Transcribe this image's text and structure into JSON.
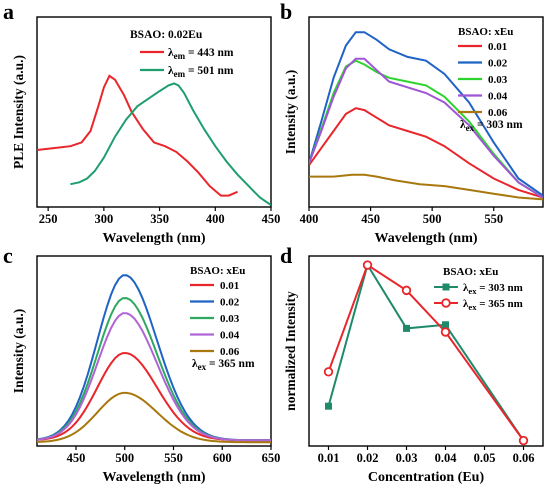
{
  "chart_data": [
    {
      "panel": "a",
      "type": "line",
      "xlabel": "Wavelength (nm)",
      "ylabel": "PLE Intensity (a.u.)",
      "xlim": [
        240,
        450
      ],
      "ylim": [
        0,
        1.0
      ],
      "xticks": [
        250,
        300,
        350,
        400,
        450
      ],
      "show_y_ticks": false,
      "annotation": "BSAO: 0.02Eu",
      "legend_position": "top-right",
      "series": [
        {
          "name": "λem = 443 nm",
          "legend_main": "λ",
          "legend_sub": "em",
          "legend_rest": " = 443 nm",
          "color": "#e8262b",
          "x": [
            240,
            255,
            270,
            280,
            288,
            295,
            300,
            305,
            310,
            318,
            325,
            335,
            345,
            355,
            365,
            375,
            385,
            395,
            405,
            412,
            420
          ],
          "y": [
            0.3,
            0.31,
            0.32,
            0.34,
            0.4,
            0.53,
            0.63,
            0.69,
            0.67,
            0.59,
            0.5,
            0.41,
            0.34,
            0.32,
            0.29,
            0.24,
            0.18,
            0.11,
            0.06,
            0.06,
            0.08
          ]
        },
        {
          "name": "λem = 501 nm",
          "legend_main": "λ",
          "legend_sub": "em",
          "legend_rest": " = 501 nm",
          "color": "#1f9e6e",
          "x": [
            270,
            278,
            285,
            292,
            300,
            310,
            320,
            330,
            340,
            350,
            358,
            363,
            367,
            372,
            380,
            390,
            400,
            410,
            420,
            430,
            440,
            450
          ],
          "y": [
            0.12,
            0.13,
            0.15,
            0.19,
            0.26,
            0.37,
            0.46,
            0.53,
            0.57,
            0.61,
            0.64,
            0.65,
            0.64,
            0.6,
            0.51,
            0.41,
            0.32,
            0.24,
            0.17,
            0.11,
            0.05,
            0.01
          ]
        }
      ]
    },
    {
      "panel": "b",
      "type": "line",
      "xlabel": "Wavelength (nm)",
      "ylabel": "Intensity (a.u.)",
      "xlim": [
        400,
        590
      ],
      "ylim": [
        0,
        1.0
      ],
      "xticks": [
        400,
        450,
        500,
        550
      ],
      "show_y_ticks": false,
      "legend_title": "BSAO: xEu",
      "annotation_main": "λ",
      "annotation_sub": "ex",
      "annotation_rest": " = 303 nm",
      "legend_position": "top-right",
      "series": [
        {
          "name": "0.01",
          "color": "#e8262b",
          "x": [
            400,
            410,
            420,
            430,
            438,
            445,
            455,
            465,
            480,
            495,
            510,
            530,
            550,
            570,
            590
          ],
          "y": [
            0.22,
            0.31,
            0.4,
            0.49,
            0.52,
            0.51,
            0.47,
            0.43,
            0.4,
            0.37,
            0.32,
            0.23,
            0.15,
            0.09,
            0.05
          ]
        },
        {
          "name": "0.02",
          "color": "#1f63c6",
          "x": [
            400,
            410,
            420,
            430,
            438,
            445,
            455,
            465,
            480,
            495,
            510,
            530,
            550,
            570,
            590
          ],
          "y": [
            0.23,
            0.45,
            0.68,
            0.85,
            0.92,
            0.92,
            0.88,
            0.83,
            0.79,
            0.77,
            0.7,
            0.55,
            0.34,
            0.15,
            0.06
          ]
        },
        {
          "name": "0.03",
          "color": "#2dd32d",
          "x": [
            400,
            410,
            420,
            430,
            438,
            445,
            455,
            465,
            480,
            495,
            510,
            530,
            550,
            570,
            590
          ],
          "y": [
            0.23,
            0.41,
            0.6,
            0.74,
            0.77,
            0.75,
            0.71,
            0.68,
            0.66,
            0.64,
            0.58,
            0.45,
            0.28,
            0.13,
            0.05
          ]
        },
        {
          "name": "0.04",
          "color": "#9f55d6",
          "x": [
            400,
            410,
            420,
            430,
            438,
            445,
            455,
            465,
            480,
            495,
            510,
            530,
            550,
            570,
            590
          ],
          "y": [
            0.23,
            0.4,
            0.58,
            0.73,
            0.78,
            0.78,
            0.72,
            0.66,
            0.63,
            0.6,
            0.55,
            0.43,
            0.27,
            0.13,
            0.05
          ]
        },
        {
          "name": "0.06",
          "color": "#a8780e",
          "x": [
            400,
            420,
            435,
            445,
            455,
            470,
            490,
            510,
            530,
            550,
            570,
            590
          ],
          "y": [
            0.16,
            0.16,
            0.17,
            0.17,
            0.16,
            0.14,
            0.12,
            0.11,
            0.09,
            0.07,
            0.05,
            0.04
          ]
        }
      ]
    },
    {
      "panel": "c",
      "type": "line",
      "xlabel": "Wavelength (nm)",
      "ylabel": "Intensity (a.u.)",
      "xlim": [
        410,
        650
      ],
      "ylim": [
        0,
        1.0
      ],
      "xticks": [
        450,
        500,
        550,
        600,
        650
      ],
      "show_y_ticks": false,
      "legend_title": "BSAO: xEu",
      "annotation_main": "λ",
      "annotation_sub": "ex",
      "annotation_rest": " = 365 nm",
      "legend_position": "top-right",
      "series": [
        {
          "name": "0.01",
          "color": "#e8262b",
          "peak": 0.49,
          "baseline": 0.03
        },
        {
          "name": "0.02",
          "color": "#1f63c6",
          "peak": 0.9,
          "baseline": 0.03
        },
        {
          "name": "0.03",
          "color": "#2ea85f",
          "peak": 0.78,
          "baseline": 0.03
        },
        {
          "name": "0.04",
          "color": "#b064d6",
          "peak": 0.7,
          "baseline": 0.03
        },
        {
          "name": "0.06",
          "color": "#a8780e",
          "peak": 0.28,
          "baseline": 0.02
        }
      ]
    },
    {
      "panel": "d",
      "type": "line",
      "xlabel": "Concentration (Eu)",
      "ylabel": "normalized Intensity",
      "xlim": [
        0.005,
        0.065
      ],
      "ylim": [
        0,
        1.05
      ],
      "xticks": [
        0.01,
        0.02,
        0.03,
        0.04,
        0.05,
        0.06
      ],
      "xticklabels": [
        "0.01",
        "0.02",
        "0.03",
        "0.04",
        "0.05",
        "0.06"
      ],
      "show_y_ticks": false,
      "legend_title": "BSAO: xEu",
      "legend_position": "top-right",
      "series": [
        {
          "name": "λex = 303 nm",
          "legend_main": "λ",
          "legend_sub": "ex",
          "legend_rest": " = 303 nm",
          "color": "#1f8a6a",
          "marker": "square",
          "x": [
            0.01,
            0.02,
            0.03,
            0.04,
            0.06
          ],
          "y": [
            0.22,
            1.0,
            0.65,
            0.67,
            0.03
          ]
        },
        {
          "name": "λex = 365 nm",
          "legend_main": "λ",
          "legend_sub": "ex",
          "legend_rest": " = 365 nm",
          "color": "#e8262b",
          "marker": "circle",
          "x": [
            0.01,
            0.02,
            0.03,
            0.04,
            0.06
          ],
          "y": [
            0.41,
            1.0,
            0.86,
            0.63,
            0.03
          ]
        }
      ]
    }
  ],
  "panel_letters": [
    "a",
    "b",
    "c",
    "d"
  ]
}
